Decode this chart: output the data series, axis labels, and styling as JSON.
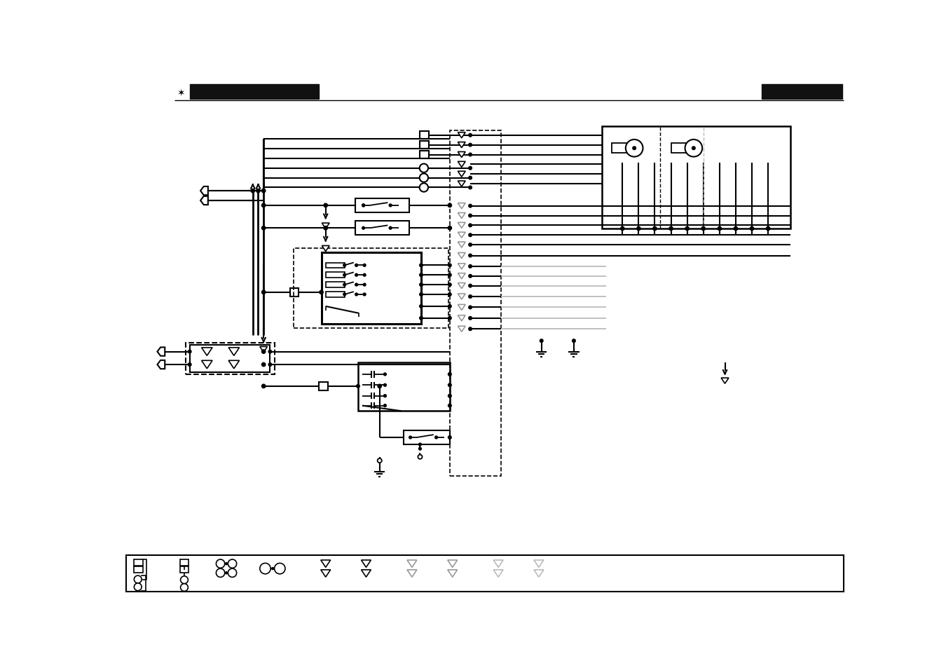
{
  "bg_color": "#ffffff",
  "line_color": "#000000",
  "gray_color": "#999999",
  "light_gray": "#bbbbbb"
}
